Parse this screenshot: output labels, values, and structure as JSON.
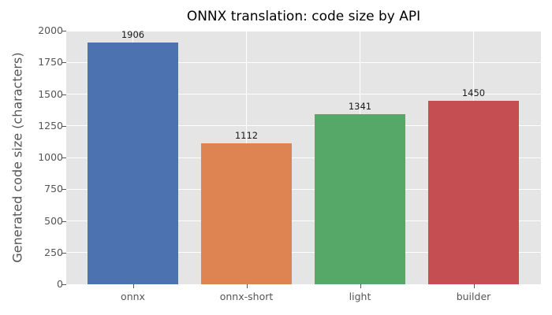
{
  "chart_data": {
    "type": "bar",
    "title": "ONNX translation: code size by API",
    "xlabel": "",
    "ylabel": "Generated code size (characters)",
    "categories": [
      "onnx",
      "onnx-short",
      "light",
      "builder"
    ],
    "values": [
      1906,
      1112,
      1341,
      1450
    ],
    "data_labels": [
      "1906",
      "1112",
      "1341",
      "1450"
    ],
    "colors": [
      "#4c72b0",
      "#dd8452",
      "#55a868",
      "#c44e52"
    ],
    "ylim": [
      0,
      2000
    ],
    "yticks": [
      "0",
      "250",
      "500",
      "750",
      "1000",
      "1250",
      "1500",
      "1750",
      "2000"
    ],
    "grid": true,
    "style": "ggplot",
    "background": "#e5e5e5"
  }
}
